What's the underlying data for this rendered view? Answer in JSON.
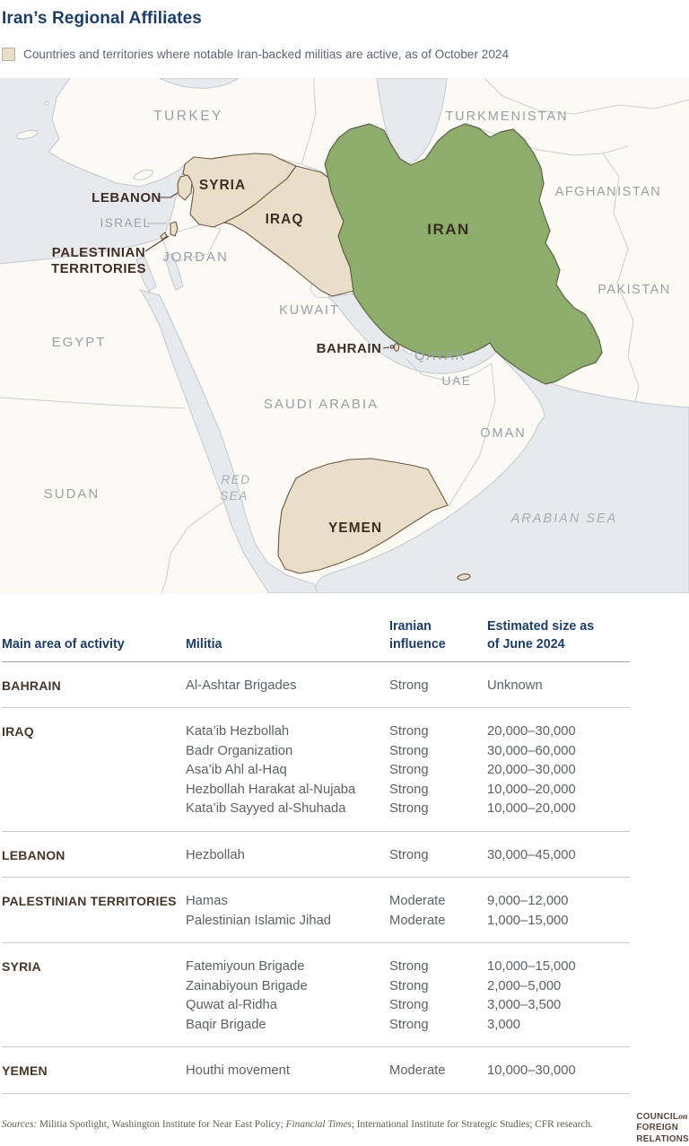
{
  "title": "Iran’s Regional Affiliates",
  "legend": {
    "label": "Countries and territories where notable Iran-backed militias are active, as of October 2024",
    "swatch_color": "#e9dfc8"
  },
  "map": {
    "highlight_color": "#e9dfc8",
    "iran_color": "#8ead6d",
    "sea_color": "#e8e9ed",
    "land_color": "#fbfaf5",
    "labels": {
      "turkey": "TURKEY",
      "turkmenistan": "TURKMENISTAN",
      "afghanistan": "AFGHANISTAN",
      "pakistan": "PAKISTAN",
      "syria": "SYRIA",
      "iraq": "IRAQ",
      "iran": "IRAN",
      "lebanon": "LEBANON",
      "israel": "ISRAEL",
      "palestinian_line1": "PALESTINIAN",
      "palestinian_line2": "TERRITORIES",
      "jordan": "JORDAN",
      "egypt": "EGYPT",
      "kuwait": "KUWAIT",
      "bahrain": "BAHRAIN",
      "qatar": "QATAR",
      "uae": "UAE",
      "saudi_arabia": "SAUDI ARABIA",
      "oman": "OMAN",
      "sudan": "SUDAN",
      "red_sea_line1": "RED",
      "red_sea_line2": "SEA",
      "yemen": "YEMEN",
      "arabian_sea": "ARABIAN SEA"
    }
  },
  "table": {
    "headers": [
      "Main area of activity",
      "Militia",
      "Iranian influence",
      "Estimated size as of June 2024"
    ],
    "groups": [
      {
        "area": "BAHRAIN",
        "rows": [
          {
            "militia": "Al-Ashtar Brigades",
            "influence": "Strong",
            "size": "Unknown"
          }
        ]
      },
      {
        "area": "IRAQ",
        "rows": [
          {
            "militia": "Kata’ib Hezbollah",
            "influence": "Strong",
            "size": "20,000–30,000"
          },
          {
            "militia": "Badr Organization",
            "influence": "Strong",
            "size": "30,000–60,000"
          },
          {
            "militia": "Asa’ib Ahl al-Haq",
            "influence": "Strong",
            "size": "20,000–30,000"
          },
          {
            "militia": "Hezbollah Harakat al-Nujaba",
            "influence": "Strong",
            "size": "10,000–20,000"
          },
          {
            "militia": "Kata’ib Sayyed al-Shuhada",
            "influence": "Strong",
            "size": "10,000–20,000"
          }
        ]
      },
      {
        "area": "LEBANON",
        "rows": [
          {
            "militia": "Hezbollah",
            "influence": "Strong",
            "size": "30,000–45,000"
          }
        ]
      },
      {
        "area": "PALESTINIAN TERRITORIES",
        "rows": [
          {
            "militia": "Hamas",
            "influence": "Moderate",
            "size": "9,000–12,000"
          },
          {
            "militia": "Palestinian Islamic Jihad",
            "influence": "Moderate",
            "size": "1,000–15,000"
          }
        ]
      },
      {
        "area": "SYRIA",
        "rows": [
          {
            "militia": "Fatemiyoun Brigade",
            "influence": "Strong",
            "size": "10,000–15,000"
          },
          {
            "militia": "Zainabiyoun Brigade",
            "influence": "Strong",
            "size": "2,000–5,000"
          },
          {
            "militia": "Quwat al-Ridha",
            "influence": "Strong",
            "size": "3,000–3,500"
          },
          {
            "militia": "Baqir Brigade",
            "influence": "Strong",
            "size": "3,000"
          }
        ]
      },
      {
        "area": "YEMEN",
        "rows": [
          {
            "militia": "Houthi movement",
            "influence": "Moderate",
            "size": "10,000–30,000"
          }
        ]
      }
    ]
  },
  "footer": {
    "sources_parts": [
      {
        "text": "Sources:",
        "italic": true
      },
      {
        "text": " Militia Spotlight, Washington Institute for Near East Policy; ",
        "italic": false
      },
      {
        "text": "Financial Times",
        "italic": true
      },
      {
        "text": "; International Institute for Strategic Studies; CFR research.",
        "italic": false
      }
    ],
    "logo": {
      "line1": "COUNCIL",
      "on": "on",
      "line2": "FOREIGN",
      "line3": "RELATIONS"
    }
  }
}
